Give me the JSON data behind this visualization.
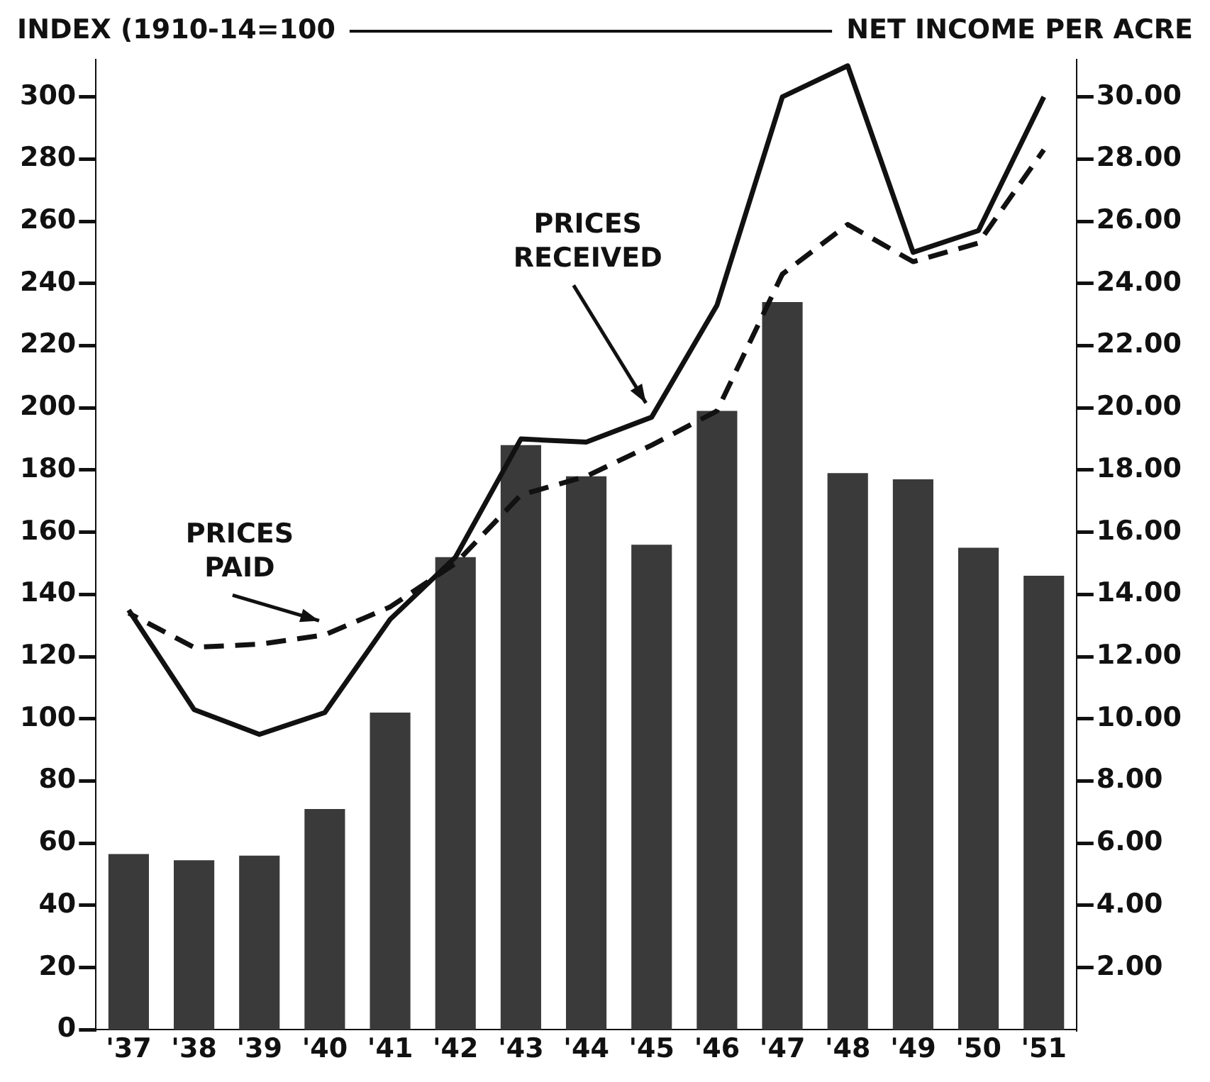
{
  "chart_data": {
    "type": "bar",
    "ylabel": "INDEX (1910-14=100",
    "y2label": "NET INCOME PER ACRE",
    "categories": [
      "'37",
      "'38",
      "'39",
      "'40",
      "'41",
      "'42",
      "'43",
      "'44",
      "'45",
      "'46",
      "'47",
      "'48",
      "'49",
      "'50",
      "'51"
    ],
    "series": [
      {
        "axis": "y2",
        "color": "#3a3a3a",
        "values": [
          5.65,
          5.45,
          5.6,
          7.1,
          10.2,
          15.2,
          18.8,
          17.8,
          15.6,
          19.9,
          23.4,
          17.9,
          17.7,
          15.5,
          14.6
        ]
      },
      {
        "type": "line",
        "name": "PRICES RECEIVED",
        "color": "#111111",
        "line_style": "solid",
        "values": [
          135,
          103,
          95,
          102,
          132,
          152,
          190,
          189,
          197,
          233,
          300,
          310,
          250,
          257,
          300
        ]
      },
      {
        "type": "line",
        "name": "PRICES PAID",
        "color": "#111111",
        "line_style": "dashed",
        "values": [
          134,
          123,
          124,
          127,
          136,
          150,
          172,
          178,
          188,
          199,
          243,
          259,
          247,
          253,
          283
        ]
      }
    ],
    "ylim": [
      0,
      312
    ],
    "yticks": [
      0,
      20,
      40,
      60,
      80,
      100,
      120,
      140,
      160,
      180,
      200,
      220,
      240,
      260,
      280,
      300
    ],
    "y2lim": [
      0,
      31.2
    ],
    "y2ticks": [
      {
        "value": 2,
        "label": "2.00"
      },
      {
        "value": 4,
        "label": "4.00"
      },
      {
        "value": 6,
        "label": "6.00"
      },
      {
        "value": 8,
        "label": "8.00"
      },
      {
        "value": 10,
        "label": "10.00"
      },
      {
        "value": 12,
        "label": "12.00"
      },
      {
        "value": 14,
        "label": "14.00"
      },
      {
        "value": 16,
        "label": "16.00"
      },
      {
        "value": 18,
        "label": "18.00"
      },
      {
        "value": 20,
        "label": "20.00"
      },
      {
        "value": 22,
        "label": "22.00"
      },
      {
        "value": 24,
        "label": "24.00"
      },
      {
        "value": 26,
        "label": "26.00"
      },
      {
        "value": 28,
        "label": "28.00"
      },
      {
        "value": 30,
        "label": "30.00"
      }
    ],
    "grid": false,
    "legend": false,
    "marker": "none"
  }
}
